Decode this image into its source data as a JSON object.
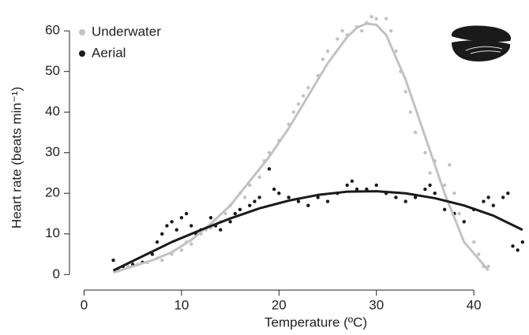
{
  "chart_data": {
    "type": "scatter",
    "x_label": "Temperature (ºC)",
    "y_label": "Heart rate (beats min⁻¹)",
    "xlim": [
      -1.5,
      45.5
    ],
    "xticks": [
      0,
      10,
      20,
      30,
      40
    ],
    "ylim": [
      -1.5,
      64.5
    ],
    "yticks": [
      0,
      10,
      20,
      30,
      40,
      50,
      60
    ],
    "legend": "top-left",
    "series": [
      {
        "name": "Underwater",
        "color": "#c2c2c2",
        "x": [
          3.5,
          4.5,
          5.5,
          6.5,
          7.5,
          8,
          9,
          10,
          10.5,
          11,
          12,
          12.5,
          13,
          14,
          14.5,
          15,
          16,
          16.5,
          17,
          18,
          18.5,
          19,
          20,
          21,
          21.5,
          22,
          22.5,
          23,
          24,
          24.5,
          25,
          26,
          26.5,
          27,
          28,
          28.5,
          29,
          29.5,
          30,
          31,
          31.5,
          32,
          32.5,
          33,
          33.5,
          34,
          35,
          35.5,
          36,
          37,
          37.5,
          38,
          38.5,
          39,
          40,
          40.5,
          41,
          41.5
        ],
        "values": [
          1,
          2,
          2.5,
          3,
          4,
          3.5,
          5,
          6,
          8,
          7.5,
          10,
          11,
          11.5,
          13,
          15,
          17,
          20,
          19,
          22,
          24,
          28,
          30,
          33,
          37,
          40,
          42,
          44,
          46,
          49,
          53,
          55,
          58,
          60,
          59,
          61,
          60,
          62,
          63.5,
          63,
          63,
          60,
          55,
          50,
          45,
          40,
          35,
          30,
          25,
          28,
          22,
          27,
          20,
          15,
          13,
          8,
          5,
          2,
          2
        ],
        "fit": {
          "x": [
            3,
            5,
            7,
            9,
            11,
            13,
            15,
            17,
            19,
            21,
            23,
            25,
            27,
            28,
            29,
            30,
            31,
            33,
            35,
            37,
            39,
            41.5
          ],
          "y": [
            0.5,
            2,
            3.5,
            5.5,
            8.5,
            12.5,
            17,
            23,
            29,
            36,
            44,
            52,
            58.5,
            60.8,
            61.8,
            61.5,
            59,
            48,
            34,
            20,
            8,
            1
          ]
        }
      },
      {
        "name": "Aerial",
        "color": "#1a1a1a",
        "x": [
          3,
          3.5,
          4,
          5,
          6,
          7,
          7.5,
          8,
          8.5,
          9,
          9.5,
          10,
          10.5,
          11,
          11.5,
          12,
          13,
          13.5,
          14,
          15,
          15.5,
          16,
          17,
          17.5,
          18,
          19,
          19.5,
          20,
          21,
          22,
          23,
          24,
          25,
          26,
          27,
          27.5,
          28,
          29,
          30,
          31,
          32,
          33,
          34,
          35,
          35.5,
          36,
          37,
          38,
          39,
          40,
          41,
          41.5,
          42,
          43,
          43.5,
          44,
          44.5,
          45
        ],
        "values": [
          3.5,
          1,
          2,
          2.5,
          3,
          5,
          8,
          10,
          12,
          13,
          11,
          14,
          15,
          12,
          10,
          11,
          14,
          12,
          11,
          13,
          15,
          16,
          17,
          18,
          19,
          26,
          21,
          20,
          19,
          18,
          17,
          19,
          18,
          20,
          22,
          23,
          21,
          21,
          22,
          20,
          19,
          18,
          19,
          21,
          22,
          20,
          16,
          15,
          13,
          16,
          18,
          19,
          17,
          19,
          20,
          7,
          6,
          8
        ],
        "fit": {
          "x": [
            3,
            6,
            9,
            12,
            15,
            18,
            21,
            24,
            27,
            30,
            33,
            36,
            39,
            42,
            45
          ],
          "y": [
            1,
            4.5,
            8,
            11,
            13.8,
            16.3,
            18.2,
            19.6,
            20.4,
            20.5,
            20,
            18.8,
            17,
            14.5,
            11
          ]
        }
      }
    ]
  }
}
